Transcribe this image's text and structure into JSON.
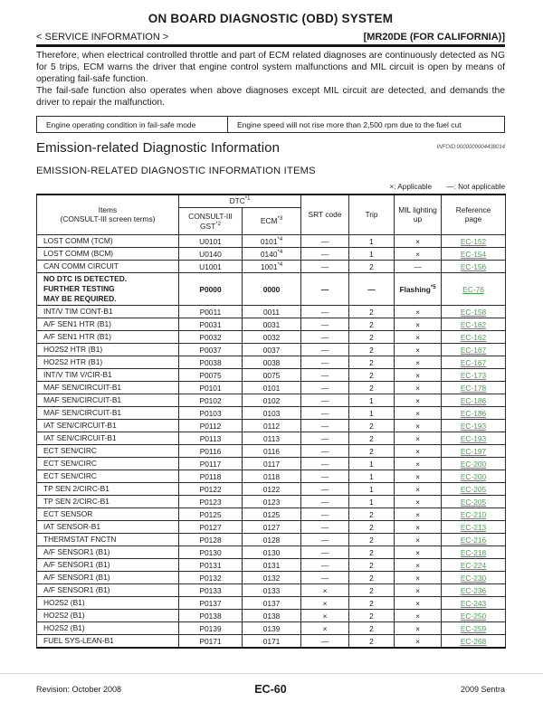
{
  "header": {
    "title": "ON BOARD DIAGNOSTIC (OBD) SYSTEM",
    "service_info": "< SERVICE INFORMATION >",
    "engine_variant": "[MR20DE (FOR CALIFORNIA)]"
  },
  "intro": {
    "paragraph1": "Therefore, when electrical controlled throttle and part of ECM related diagnoses are continuously detected as NG for 5 trips, ECM warns the driver that engine control system malfunctions and MIL circuit is open by means of operating fail-safe function.",
    "paragraph2": "The fail-safe function also operates when above diagnoses except MIL circuit are detected, and demands the driver to repair the malfunction."
  },
  "failsafe": {
    "condition_label": "Engine operating condition in fail-safe mode",
    "condition_value": "Engine speed will not rise more than 2,500 rpm due to the fuel cut"
  },
  "section": {
    "heading": "Emission-related Diagnostic Information",
    "infoid": "INFOID:0000000004438014",
    "subheading": "EMISSION-RELATED DIAGNOSTIC INFORMATION ITEMS",
    "legend_applicable": "×: Applicable",
    "legend_not_applicable": "—: Not applicable"
  },
  "table": {
    "header": {
      "items_line1": "Items",
      "items_line2": "(CONSULT-III screen terms)",
      "dtc_label": "DTC",
      "dtc_sup": "*1",
      "gst_line1": "CONSULT-III",
      "gst_line2": "GST",
      "gst_sup": "*2",
      "ecm_label": "ECM",
      "ecm_sup": "*3",
      "srt_label": "SRT code",
      "trip_label": "Trip",
      "mil_line1": "MIL lighting",
      "mil_line2": "up",
      "ref_line1": "Reference",
      "ref_line2": "page"
    },
    "rows": [
      {
        "item": "LOST COMM (TCM)",
        "gst": "U0101",
        "ecm": "0101",
        "ecm_sup": "*4",
        "srt": "—",
        "trip": "1",
        "mil": "×",
        "mil_sup": "",
        "ref": "EC-152",
        "bold": false
      },
      {
        "item": "LOST COMM (BCM)",
        "gst": "U0140",
        "ecm": "0140",
        "ecm_sup": "*4",
        "srt": "—",
        "trip": "1",
        "mil": "×",
        "mil_sup": "",
        "ref": "EC-154",
        "bold": false
      },
      {
        "item": "CAN COMM CIRCUIT",
        "gst": "U1001",
        "ecm": "1001",
        "ecm_sup": "*4",
        "srt": "—",
        "trip": "2",
        "mil": "—",
        "mil_sup": "",
        "ref": "EC-156",
        "bold": false
      },
      {
        "item": "NO DTC IS DETECTED.\nFURTHER TESTING\nMAY BE REQUIRED.",
        "gst": "P0000",
        "ecm": "0000",
        "ecm_sup": "",
        "srt": "—",
        "trip": "—",
        "mil": "Flashing",
        "mil_sup": "*5",
        "ref": "EC-76",
        "bold": true
      },
      {
        "item": "INT/V TIM CONT-B1",
        "gst": "P0011",
        "ecm": "0011",
        "ecm_sup": "",
        "srt": "—",
        "trip": "2",
        "mil": "×",
        "mil_sup": "",
        "ref": "EC-158",
        "bold": false
      },
      {
        "item": "A/F SEN1 HTR (B1)",
        "gst": "P0031",
        "ecm": "0031",
        "ecm_sup": "",
        "srt": "—",
        "trip": "2",
        "mil": "×",
        "mil_sup": "",
        "ref": "EC-162",
        "bold": false
      },
      {
        "item": "A/F SEN1 HTR (B1)",
        "gst": "P0032",
        "ecm": "0032",
        "ecm_sup": "",
        "srt": "—",
        "trip": "2",
        "mil": "×",
        "mil_sup": "",
        "ref": "EC-162",
        "bold": false
      },
      {
        "item": "HO2S2 HTR (B1)",
        "gst": "P0037",
        "ecm": "0037",
        "ecm_sup": "",
        "srt": "—",
        "trip": "2",
        "mil": "×",
        "mil_sup": "",
        "ref": "EC-167",
        "bold": false
      },
      {
        "item": "HO2S2 HTR (B1)",
        "gst": "P0038",
        "ecm": "0038",
        "ecm_sup": "",
        "srt": "—",
        "trip": "2",
        "mil": "×",
        "mil_sup": "",
        "ref": "EC-167",
        "bold": false
      },
      {
        "item": "INT/V TIM V/CIR-B1",
        "gst": "P0075",
        "ecm": "0075",
        "ecm_sup": "",
        "srt": "—",
        "trip": "2",
        "mil": "×",
        "mil_sup": "",
        "ref": "EC-173",
        "bold": false
      },
      {
        "item": "MAF SEN/CIRCUIT-B1",
        "gst": "P0101",
        "ecm": "0101",
        "ecm_sup": "",
        "srt": "—",
        "trip": "2",
        "mil": "×",
        "mil_sup": "",
        "ref": "EC-178",
        "bold": false
      },
      {
        "item": "MAF SEN/CIRCUIT-B1",
        "gst": "P0102",
        "ecm": "0102",
        "ecm_sup": "",
        "srt": "—",
        "trip": "1",
        "mil": "×",
        "mil_sup": "",
        "ref": "EC-186",
        "bold": false
      },
      {
        "item": "MAF SEN/CIRCUIT-B1",
        "gst": "P0103",
        "ecm": "0103",
        "ecm_sup": "",
        "srt": "—",
        "trip": "1",
        "mil": "×",
        "mil_sup": "",
        "ref": "EC-186",
        "bold": false
      },
      {
        "item": "IAT SEN/CIRCUIT-B1",
        "gst": "P0112",
        "ecm": "0112",
        "ecm_sup": "",
        "srt": "—",
        "trip": "2",
        "mil": "×",
        "mil_sup": "",
        "ref": "EC-193",
        "bold": false
      },
      {
        "item": "IAT SEN/CIRCUIT-B1",
        "gst": "P0113",
        "ecm": "0113",
        "ecm_sup": "",
        "srt": "—",
        "trip": "2",
        "mil": "×",
        "mil_sup": "",
        "ref": "EC-193",
        "bold": false
      },
      {
        "item": "ECT SEN/CIRC",
        "gst": "P0116",
        "ecm": "0116",
        "ecm_sup": "",
        "srt": "—",
        "trip": "2",
        "mil": "×",
        "mil_sup": "",
        "ref": "EC-197",
        "bold": false
      },
      {
        "item": "ECT SEN/CIRC",
        "gst": "P0117",
        "ecm": "0117",
        "ecm_sup": "",
        "srt": "—",
        "trip": "1",
        "mil": "×",
        "mil_sup": "",
        "ref": "EC-200",
        "bold": false
      },
      {
        "item": "ECT SEN/CIRC",
        "gst": "P0118",
        "ecm": "0118",
        "ecm_sup": "",
        "srt": "—",
        "trip": "1",
        "mil": "×",
        "mil_sup": "",
        "ref": "EC-200",
        "bold": false
      },
      {
        "item": "TP SEN 2/CIRC-B1",
        "gst": "P0122",
        "ecm": "0122",
        "ecm_sup": "",
        "srt": "—",
        "trip": "1",
        "mil": "×",
        "mil_sup": "",
        "ref": "EC-205",
        "bold": false
      },
      {
        "item": "TP SEN 2/CIRC-B1",
        "gst": "P0123",
        "ecm": "0123",
        "ecm_sup": "",
        "srt": "—",
        "trip": "1",
        "mil": "×",
        "mil_sup": "",
        "ref": "EC-205",
        "bold": false
      },
      {
        "item": "ECT SENSOR",
        "gst": "P0125",
        "ecm": "0125",
        "ecm_sup": "",
        "srt": "—",
        "trip": "2",
        "mil": "×",
        "mil_sup": "",
        "ref": "EC-210",
        "bold": false
      },
      {
        "item": "IAT SENSOR-B1",
        "gst": "P0127",
        "ecm": "0127",
        "ecm_sup": "",
        "srt": "—",
        "trip": "2",
        "mil": "×",
        "mil_sup": "",
        "ref": "EC-213",
        "bold": false
      },
      {
        "item": "THERMSTAT FNCTN",
        "gst": "P0128",
        "ecm": "0128",
        "ecm_sup": "",
        "srt": "—",
        "trip": "2",
        "mil": "×",
        "mil_sup": "",
        "ref": "EC-216",
        "bold": false
      },
      {
        "item": "A/F SENSOR1 (B1)",
        "gst": "P0130",
        "ecm": "0130",
        "ecm_sup": "",
        "srt": "—",
        "trip": "2",
        "mil": "×",
        "mil_sup": "",
        "ref": "EC-218",
        "bold": false
      },
      {
        "item": "A/F SENSOR1 (B1)",
        "gst": "P0131",
        "ecm": "0131",
        "ecm_sup": "",
        "srt": "—",
        "trip": "2",
        "mil": "×",
        "mil_sup": "",
        "ref": "EC-224",
        "bold": false
      },
      {
        "item": "A/F SENSOR1 (B1)",
        "gst": "P0132",
        "ecm": "0132",
        "ecm_sup": "",
        "srt": "—",
        "trip": "2",
        "mil": "×",
        "mil_sup": "",
        "ref": "EC-230",
        "bold": false
      },
      {
        "item": "A/F SENSOR1 (B1)",
        "gst": "P0133",
        "ecm": "0133",
        "ecm_sup": "",
        "srt": "×",
        "trip": "2",
        "mil": "×",
        "mil_sup": "",
        "ref": "EC-236",
        "bold": false
      },
      {
        "item": "HO2S2 (B1)",
        "gst": "P0137",
        "ecm": "0137",
        "ecm_sup": "",
        "srt": "×",
        "trip": "2",
        "mil": "×",
        "mil_sup": "",
        "ref": "EC-243",
        "bold": false
      },
      {
        "item": "HO2S2 (B1)",
        "gst": "P0138",
        "ecm": "0138",
        "ecm_sup": "",
        "srt": "×",
        "trip": "2",
        "mil": "×",
        "mil_sup": "",
        "ref": "EC-250",
        "bold": false
      },
      {
        "item": "HO2S2 (B1)",
        "gst": "P0139",
        "ecm": "0139",
        "ecm_sup": "",
        "srt": "×",
        "trip": "2",
        "mil": "×",
        "mil_sup": "",
        "ref": "EC-259",
        "bold": false
      },
      {
        "item": "FUEL SYS-LEAN-B1",
        "gst": "P0171",
        "ecm": "0171",
        "ecm_sup": "",
        "srt": "—",
        "trip": "2",
        "mil": "×",
        "mil_sup": "",
        "ref": "EC-268",
        "bold": false
      }
    ]
  },
  "footer": {
    "revision": "Revision: October 2008",
    "page_number": "EC-60",
    "model": "2009 Sentra"
  },
  "colors": {
    "link_green": "#4ba14f"
  }
}
